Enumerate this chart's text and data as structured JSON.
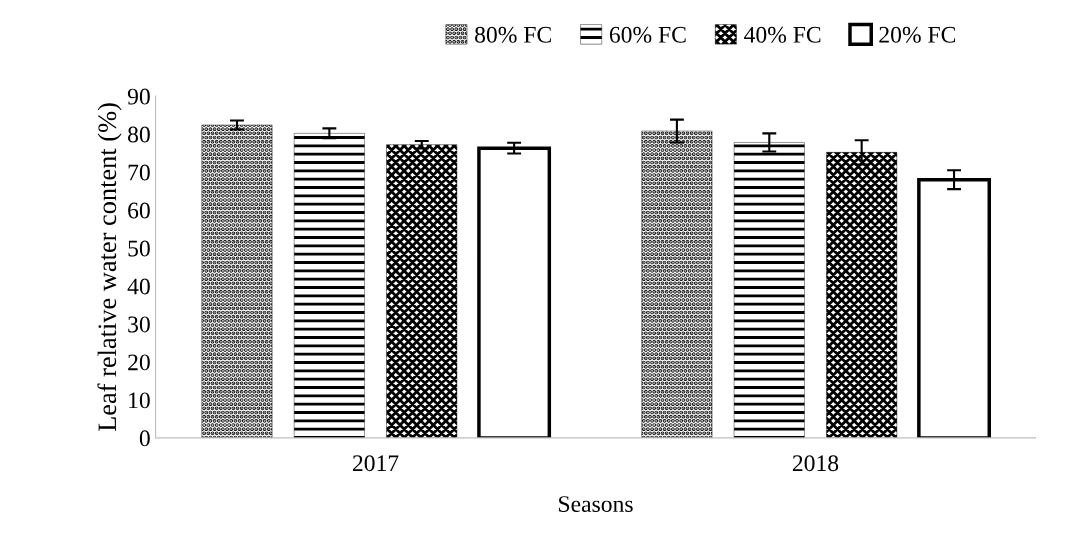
{
  "chart_data": {
    "type": "bar",
    "xlabel": "Seasons",
    "ylabel": "Leaf relative water content (%)",
    "categories": [
      "2017",
      "2018"
    ],
    "series": [
      {
        "name": "80% FC",
        "color": "#000000",
        "values": [
          82.4,
          80.8
        ],
        "errors": [
          1.2,
          3.0
        ]
      },
      {
        "name": "60% FC",
        "color": "#000000",
        "values": [
          80.2,
          77.8
        ],
        "errors": [
          1.3,
          2.4
        ]
      },
      {
        "name": "40% FC",
        "color": "#000000",
        "values": [
          77.2,
          75.2
        ],
        "errors": [
          1.0,
          3.2
        ]
      },
      {
        "name": "20% FC",
        "color": "#000000",
        "values": [
          76.3,
          68.0
        ],
        "errors": [
          1.4,
          2.5
        ]
      }
    ],
    "ylim": [
      0,
      90
    ],
    "yticks": [
      0,
      10,
      20,
      30,
      40,
      50,
      60,
      70,
      80,
      90
    ],
    "grid": false,
    "legend": "top"
  }
}
